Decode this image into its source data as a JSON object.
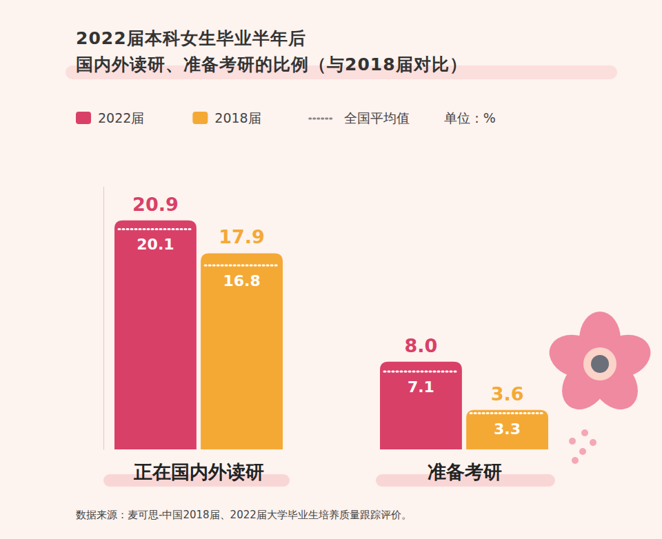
{
  "chart_data": {
    "type": "bar",
    "title": "2022届本科女生毕业半年后",
    "subtitle": "国内外读研、准备考研的比例（与2018届对比）",
    "unit_label": "单位：%",
    "average_label": "全国平均值",
    "source": "数据来源：麦可思-中国2018届、2022届大学毕业生培养质量跟踪评价。",
    "categories": [
      "正在国内外读研",
      "准备考研"
    ],
    "series": [
      {
        "name": "2022届",
        "color": "#d94068",
        "values": [
          20.9,
          8.0
        ],
        "value_labels": [
          "20.9",
          "8.0"
        ],
        "averages": [
          20.1,
          7.1
        ]
      },
      {
        "name": "2018届",
        "color": "#f4a935",
        "values": [
          17.9,
          3.6
        ],
        "value_labels": [
          "17.9",
          "3.6"
        ],
        "averages": [
          16.8,
          3.3
        ]
      }
    ],
    "ylim": [
      0,
      24
    ],
    "yticks": [],
    "data_labels": true,
    "tick_labels": "x",
    "grid": false,
    "legend": "top"
  }
}
